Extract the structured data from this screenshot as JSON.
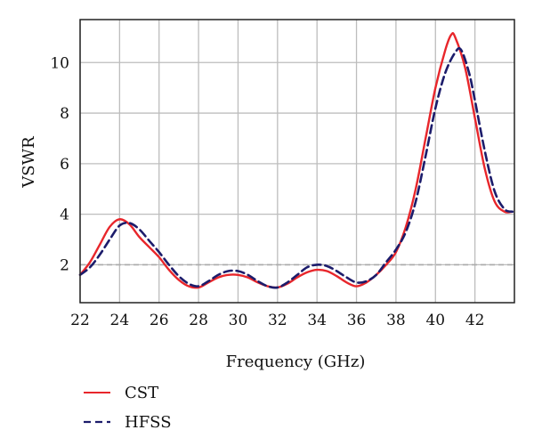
{
  "chart_data": {
    "type": "line",
    "title": "",
    "xlabel": "Frequency (GHz)",
    "ylabel": "VSWR",
    "xlim": [
      22,
      44
    ],
    "ylim": [
      0.5,
      11.7
    ],
    "xticks": [
      22,
      24,
      26,
      28,
      30,
      32,
      34,
      36,
      38,
      40,
      42
    ],
    "yticks": [
      2,
      4,
      6,
      8,
      10
    ],
    "grid": true,
    "legend_position": "bottom-left",
    "reference_line": {
      "y": 2,
      "color": "#aaaaaa",
      "style": "dashed"
    },
    "series": [
      {
        "name": "CST",
        "color": "#e8262b",
        "style": "solid",
        "x": [
          22,
          22.5,
          23,
          23.5,
          24,
          24.5,
          25,
          25.5,
          26,
          26.5,
          27,
          27.5,
          28,
          28.5,
          29,
          29.5,
          30,
          30.5,
          31,
          31.5,
          32,
          32.5,
          33,
          33.5,
          34,
          34.5,
          35,
          35.5,
          36,
          36.5,
          37,
          37.5,
          38,
          38.5,
          39,
          39.5,
          40,
          40.5,
          40.8,
          41,
          41.5,
          42,
          42.5,
          43,
          43.5,
          43.9
        ],
        "y": [
          1.6,
          2.1,
          2.8,
          3.5,
          3.8,
          3.6,
          3.1,
          2.7,
          2.3,
          1.8,
          1.4,
          1.15,
          1.1,
          1.3,
          1.5,
          1.6,
          1.6,
          1.5,
          1.3,
          1.15,
          1.1,
          1.25,
          1.5,
          1.7,
          1.8,
          1.75,
          1.55,
          1.3,
          1.15,
          1.3,
          1.6,
          2.0,
          2.5,
          3.5,
          5.0,
          7.0,
          9.0,
          10.5,
          11.1,
          11.0,
          9.8,
          7.8,
          5.8,
          4.5,
          4.1,
          4.1
        ]
      },
      {
        "name": "HFSS",
        "color": "#1c1c6b",
        "style": "dashed",
        "x": [
          22,
          22.5,
          23,
          23.5,
          24,
          24.5,
          25,
          25.5,
          26,
          26.5,
          27,
          27.5,
          28,
          28.5,
          29,
          29.5,
          30,
          30.5,
          31,
          31.5,
          32,
          32.5,
          33,
          33.5,
          34,
          34.5,
          35,
          35.5,
          36,
          36.5,
          37,
          37.5,
          38,
          38.5,
          39,
          39.5,
          40,
          40.5,
          41,
          41.3,
          41.7,
          42,
          42.5,
          43,
          43.5,
          43.9
        ],
        "y": [
          1.6,
          1.9,
          2.4,
          3.0,
          3.55,
          3.65,
          3.4,
          2.95,
          2.5,
          2.0,
          1.55,
          1.25,
          1.15,
          1.35,
          1.6,
          1.75,
          1.75,
          1.6,
          1.35,
          1.15,
          1.1,
          1.3,
          1.6,
          1.9,
          2.0,
          1.95,
          1.75,
          1.5,
          1.3,
          1.35,
          1.6,
          2.1,
          2.6,
          3.3,
          4.5,
          6.3,
          8.2,
          9.6,
          10.4,
          10.5,
          9.6,
          8.5,
          6.5,
          4.9,
          4.2,
          4.1
        ]
      }
    ]
  }
}
